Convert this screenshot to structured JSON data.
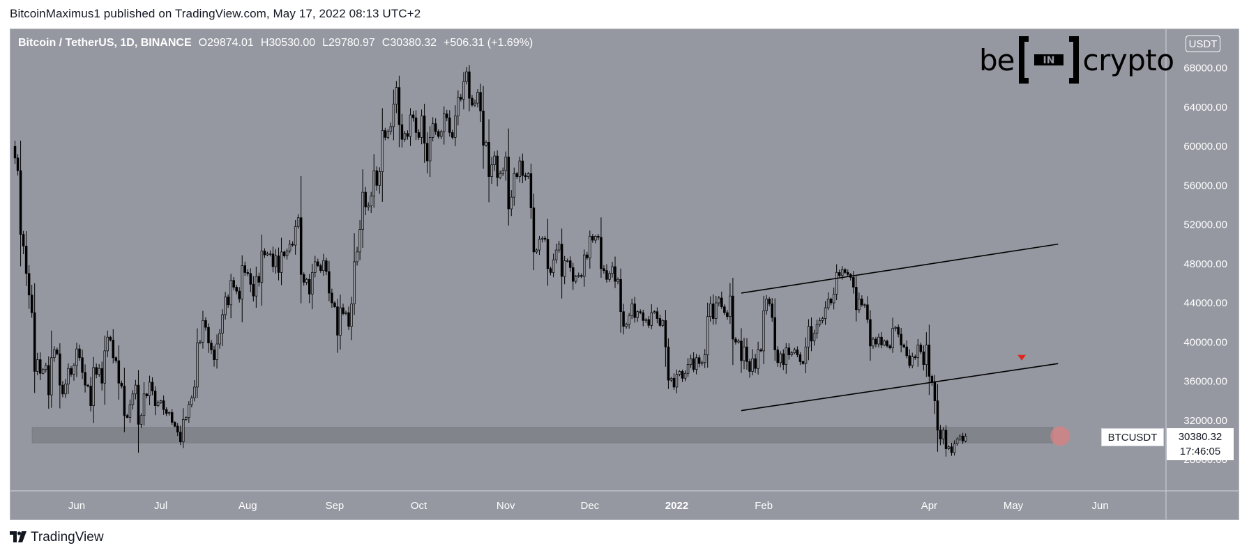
{
  "header": {
    "published_text": "BitcoinMaximus1 published on TradingView.com, May 17, 2022 08:13 UTC+2"
  },
  "footer": {
    "brand_text": "TradingView",
    "brand_mark": "tradingview-logo-icon"
  },
  "watermark": {
    "part1": "be",
    "part2": "IN",
    "part3": "crypto"
  },
  "legend": {
    "symbol": "Bitcoin / TetherUS, 1D, BINANCE",
    "o_label": "O",
    "o_value": "29874.01",
    "h_label": "H",
    "h_value": "30530.00",
    "l_label": "L",
    "l_value": "29780.97",
    "c_label": "C",
    "c_value": "30380.32",
    "change": "+506.31 (+1.69%)"
  },
  "currency_badge": "USDT",
  "symbol_tag": "BTCUSDT",
  "last_price": {
    "price": "30380.32",
    "countdown": "17:46:05"
  },
  "colors": {
    "background": "#9598a1",
    "candle": "#000000",
    "candle_up_body": "#9598a1",
    "support_zone": "#7f828a",
    "highlight_circle": "#d98080",
    "arrow": "#e0271f"
  },
  "chart_data": {
    "type": "candlestick",
    "title": "Bitcoin / TetherUS, 1D, BINANCE",
    "x_range": [
      "2022-05-10",
      "2022-06-30"
    ],
    "y_range": [
      24000,
      70000
    ],
    "y_ticks": [
      "28000.00",
      "32000.00",
      "36000.00",
      "40000.00",
      "44000.00",
      "48000.00",
      "52000.00",
      "56000.00",
      "60000.00",
      "64000.00",
      "68000.00"
    ],
    "x_ticks": [
      {
        "date": "2021-06-01",
        "label": "Jun"
      },
      {
        "date": "2021-07-01",
        "label": "Jul"
      },
      {
        "date": "2021-08-01",
        "label": "Aug"
      },
      {
        "date": "2021-09-01",
        "label": "Sep"
      },
      {
        "date": "2021-10-01",
        "label": "Oct"
      },
      {
        "date": "2021-11-01",
        "label": "Nov"
      },
      {
        "date": "2021-12-01",
        "label": "Dec"
      },
      {
        "date": "2022-01-01",
        "label": "2022"
      },
      {
        "date": "2022-02-01",
        "label": "Feb"
      },
      {
        "date": "2022-04-01",
        "label": "Apr"
      },
      {
        "date": "2022-05-01",
        "label": "May"
      },
      {
        "date": "2022-06-01",
        "label": "Jun"
      }
    ],
    "start_date": "2021-05-10",
    "closes": [
      58800,
      57500,
      51000,
      49800,
      47000,
      44800,
      43000,
      37000,
      38200,
      36800,
      37200,
      37600,
      34600,
      38400,
      39200,
      38800,
      35600,
      34700,
      35700,
      37300,
      36700,
      37600,
      39300,
      38400,
      36900,
      35600,
      35500,
      33500,
      37400,
      36700,
      37300,
      35800,
      39100,
      40500,
      40200,
      38400,
      38100,
      35800,
      35500,
      32500,
      32300,
      33600,
      34700,
      35600,
      31600,
      32500,
      34700,
      34500,
      35900,
      35000,
      33500,
      33800,
      34000,
      33100,
      32700,
      32800,
      31800,
      31400,
      30800,
      29800,
      32100,
      32300,
      33600,
      34300,
      35400,
      39900,
      40000,
      42200,
      41500,
      39900,
      39200,
      38200,
      39800,
      40900,
      42800,
      44600,
      43800,
      46300,
      45600,
      45200,
      44400,
      47800,
      47100,
      47000,
      45900,
      44700,
      46700,
      46100,
      49300,
      48900,
      49000,
      49000,
      47700,
      48800,
      47100,
      49200,
      48800,
      49300,
      50000,
      49900,
      51800,
      52700,
      46900,
      46100,
      46400,
      44900,
      47100,
      48200,
      47800,
      47300,
      48300,
      47200,
      45000,
      44000,
      43600,
      40700,
      43500,
      42900,
      43000,
      41600,
      43900,
      48200,
      49200,
      51500,
      55300,
      53800,
      53900,
      54900,
      57500,
      56000,
      57400,
      61600,
      60900,
      61500,
      62000,
      64300,
      66000,
      62200,
      60700,
      61300,
      61000,
      63200,
      62900,
      61400,
      60900,
      63100,
      60300,
      58500,
      60900,
      62300,
      61500,
      61000,
      61500,
      63300,
      62900,
      61400,
      60900,
      63100,
      65000,
      64800,
      66600,
      67600,
      64900,
      64200,
      64400,
      65500,
      63600,
      60100,
      60400,
      56900,
      58100,
      59000,
      56800,
      57200,
      57500,
      58900,
      53600,
      54800,
      57200,
      56900,
      58500,
      57000,
      56900,
      57200,
      53700,
      49200,
      49400,
      50500,
      50600,
      50500,
      47500,
      47100,
      48400,
      49400,
      50000,
      46700,
      48300,
      48300,
      47600,
      46200,
      46700,
      46800,
      46700,
      48900,
      48600,
      50800,
      50400,
      50800,
      50700,
      47500,
      47300,
      46400,
      47000,
      47700,
      46200,
      46400,
      43100,
      41600,
      41800,
      42700,
      43900,
      42500,
      43100,
      43000,
      42200,
      42300,
      41700,
      43000,
      43100,
      42400,
      41700,
      42200,
      39500,
      36100,
      36300,
      35400,
      36700,
      37000,
      36300,
      36800,
      37700,
      38300,
      37200,
      38400,
      37800,
      37900,
      38700,
      42600,
      43900,
      42400,
      44000,
      44500,
      43600,
      43000,
      42600,
      44700,
      40300,
      40000,
      40100,
      38100,
      39500,
      38000,
      37000,
      38300,
      37300,
      39200,
      39100,
      43200,
      44400,
      43900,
      42500,
      39200,
      37900,
      38800,
      37700,
      39400,
      38700,
      38900,
      39200,
      38700,
      38000,
      37800,
      39500,
      41600,
      40100,
      40900,
      41800,
      42200,
      42400,
      43500,
      44400,
      44000,
      44900,
      47100,
      46800,
      47400,
      47100,
      46900,
      46600,
      45600,
      43300,
      44400,
      43800,
      43800,
      42300,
      39600,
      40300,
      39800,
      40500,
      39700,
      40100,
      39600,
      39400,
      41400,
      41500,
      40800,
      39700,
      39500,
      38600,
      37600,
      38500,
      38400,
      39700,
      39000,
      37700,
      39700,
      36500,
      35900,
      34000,
      31000,
      30100,
      31000,
      29100,
      29300,
      28700,
      29600,
      30100,
      30400,
      29900,
      30380
    ],
    "channel": {
      "resistance": [
        {
          "date": "2022-01-24",
          "value": 45000
        },
        {
          "date": "2022-05-17",
          "value": 50000
        }
      ],
      "support": [
        {
          "date": "2022-01-24",
          "value": 33000
        },
        {
          "date": "2022-05-17",
          "value": 37800
        }
      ]
    },
    "support_zone": [
      29700,
      31300
    ],
    "breakdown_arrow": {
      "date": "2022-05-04",
      "value": 38400
    },
    "highlight": {
      "date": "2022-05-17",
      "value": 30400
    }
  }
}
